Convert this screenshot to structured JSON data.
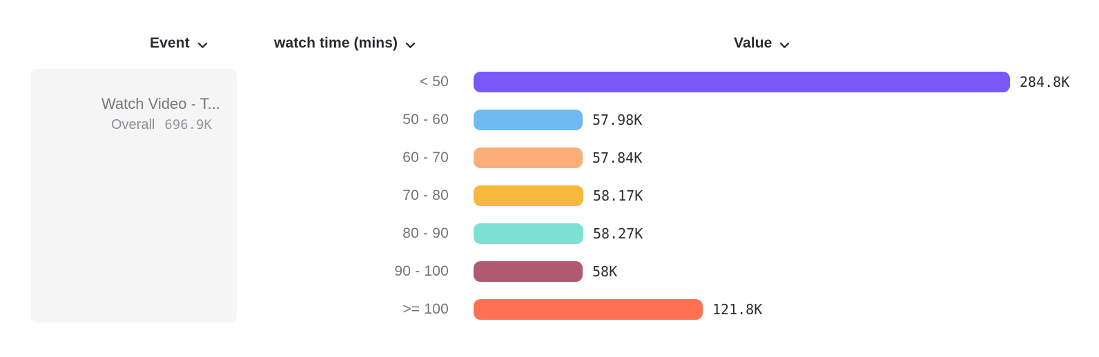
{
  "header": {
    "columns": [
      {
        "label": "Event"
      },
      {
        "label": "watch time (mins)"
      },
      {
        "label": "Value"
      }
    ]
  },
  "event_card": {
    "name": "Watch Video - T...",
    "overall_label": "Overall",
    "overall_value": "696.9K"
  },
  "chart_data": {
    "type": "bar",
    "orientation": "horizontal",
    "title": "",
    "xlabel": "Value",
    "ylabel": "watch time (mins)",
    "categories": [
      "< 50",
      "50 - 60",
      "60 - 70",
      "70 - 80",
      "80 - 90",
      "90 - 100",
      ">= 100"
    ],
    "values": [
      284800,
      57980,
      57840,
      58170,
      58270,
      58000,
      121800
    ],
    "value_labels": [
      "284.8K",
      "57.98K",
      "57.84K",
      "58.17K",
      "58.27K",
      "58K",
      "121.8K"
    ],
    "bar_colors": [
      "#7a58f7",
      "#70baf3",
      "#fbae78",
      "#f6b93e",
      "#7ce0d3",
      "#af5a71",
      "#fe7253"
    ],
    "xlim": [
      0,
      284800
    ],
    "grid": false,
    "legend": false
  },
  "icons": {
    "chevron_color": "#2e2e33"
  }
}
